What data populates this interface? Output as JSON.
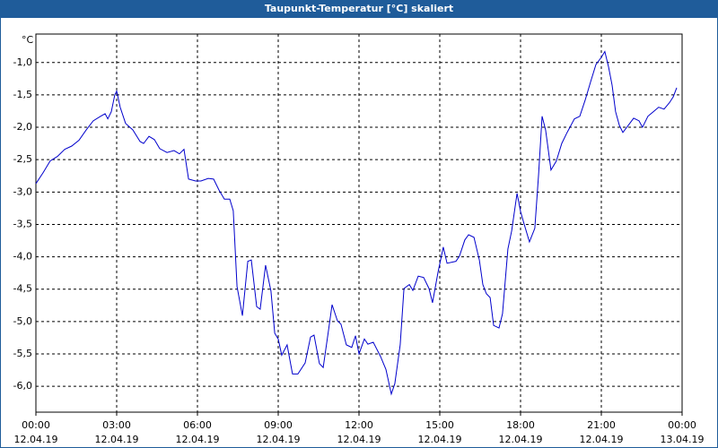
{
  "chart_data": {
    "type": "line",
    "title": "Taupunkt-Temperatur [°C] skaliert",
    "y_label": "°C",
    "xlim": [
      0,
      24
    ],
    "ylim": [
      -6.4,
      -0.56
    ],
    "grid": true,
    "xticks": [
      {
        "value": 0,
        "label": "00:00"
      },
      {
        "value": 3,
        "label": "03:00"
      },
      {
        "value": 6,
        "label": "06:00"
      },
      {
        "value": 9,
        "label": "09:00"
      },
      {
        "value": 12,
        "label": "12:00"
      },
      {
        "value": 15,
        "label": "15:00"
      },
      {
        "value": 18,
        "label": "18:00"
      },
      {
        "value": 21,
        "label": "21:00"
      },
      {
        "value": 24,
        "label": "00:00"
      }
    ],
    "xtick_dates": [
      "12.04.19",
      "12.04.19",
      "12.04.19",
      "12.04.19",
      "12.04.19",
      "12.04.19",
      "12.04.19",
      "12.04.19",
      "13.04.19"
    ],
    "yticks": [
      {
        "value": -1,
        "label": "-1,0"
      },
      {
        "value": -1.5,
        "label": "-1,5"
      },
      {
        "value": -2,
        "label": "-2,0"
      },
      {
        "value": -2.5,
        "label": "-2,5"
      },
      {
        "value": -3,
        "label": "-3,0"
      },
      {
        "value": -3.5,
        "label": "-3,5"
      },
      {
        "value": -4,
        "label": "-4,0"
      },
      {
        "value": -4.5,
        "label": "-4,5"
      },
      {
        "value": -5,
        "label": "-5,0"
      },
      {
        "value": -5.5,
        "label": "-5,5"
      },
      {
        "value": -6,
        "label": "-6,0"
      }
    ],
    "x": [
      0,
      0.27,
      0.53,
      0.8,
      1.07,
      1.33,
      1.6,
      1.87,
      2.13,
      2.4,
      2.57,
      2.67,
      2.8,
      2.93,
      3,
      3.13,
      3.33,
      3.6,
      3.87,
      4,
      4.2,
      4.4,
      4.6,
      4.87,
      5.13,
      5.33,
      5.5,
      5.67,
      5.93,
      6.13,
      6.4,
      6.6,
      6.8,
      7,
      7.2,
      7.33,
      7.47,
      7.67,
      7.87,
      8,
      8.2,
      8.33,
      8.53,
      8.73,
      8.87,
      9,
      9.13,
      9.33,
      9.53,
      9.73,
      10,
      10.2,
      10.33,
      10.53,
      10.67,
      10.87,
      11,
      11.2,
      11.33,
      11.53,
      11.73,
      11.87,
      12,
      12.2,
      12.33,
      12.53,
      12.8,
      13,
      13.2,
      13.33,
      13.53,
      13.67,
      13.87,
      14,
      14.2,
      14.4,
      14.6,
      14.73,
      14.93,
      15.13,
      15.27,
      15.6,
      15.73,
      15.93,
      16.07,
      16.27,
      16.47,
      16.6,
      16.73,
      16.87,
      17,
      17.2,
      17.33,
      17.53,
      17.67,
      17.87,
      18,
      18.13,
      18.33,
      18.53,
      18.67,
      18.8,
      18.93,
      19.13,
      19.33,
      19.53,
      19.73,
      20,
      20.2,
      20.4,
      20.6,
      20.8,
      21,
      21.13,
      21.27,
      21.4,
      21.53,
      21.67,
      21.8,
      22,
      22.2,
      22.4,
      22.53,
      22.73,
      22.93,
      23.13,
      23.33,
      23.53,
      23.67,
      23.8
    ],
    "series": [
      {
        "color": "#0000cc",
        "values": [
          -2.87,
          -2.7,
          -2.52,
          -2.45,
          -2.34,
          -2.29,
          -2.2,
          -2.04,
          -1.9,
          -1.83,
          -1.79,
          -1.87,
          -1.76,
          -1.5,
          -1.44,
          -1.69,
          -1.94,
          -2.04,
          -2.22,
          -2.25,
          -2.14,
          -2.19,
          -2.33,
          -2.39,
          -2.36,
          -2.41,
          -2.34,
          -2.8,
          -2.83,
          -2.83,
          -2.79,
          -2.8,
          -2.97,
          -3.11,
          -3.11,
          -3.29,
          -4.46,
          -4.91,
          -4.07,
          -4.05,
          -4.77,
          -4.81,
          -4.13,
          -4.53,
          -5.18,
          -5.27,
          -5.52,
          -5.36,
          -5.81,
          -5.81,
          -5.64,
          -5.24,
          -5.21,
          -5.65,
          -5.71,
          -5.13,
          -4.74,
          -4.99,
          -5.04,
          -5.36,
          -5.4,
          -5.22,
          -5.5,
          -5.27,
          -5.35,
          -5.32,
          -5.54,
          -5.74,
          -6.12,
          -5.96,
          -5.36,
          -4.49,
          -4.43,
          -4.52,
          -4.3,
          -4.32,
          -4.49,
          -4.71,
          -4.25,
          -3.85,
          -4.1,
          -4.07,
          -3.99,
          -3.74,
          -3.66,
          -3.7,
          -4.05,
          -4.43,
          -4.57,
          -4.63,
          -5.06,
          -5.1,
          -4.88,
          -3.88,
          -3.6,
          -3.02,
          -3.3,
          -3.49,
          -3.77,
          -3.56,
          -2.73,
          -1.83,
          -2.04,
          -2.66,
          -2.52,
          -2.25,
          -2.08,
          -1.87,
          -1.83,
          -1.58,
          -1.3,
          -1.03,
          -0.92,
          -0.83,
          -1.07,
          -1.35,
          -1.76,
          -1.97,
          -2.08,
          -1.97,
          -1.86,
          -1.9,
          -2.0,
          -1.83,
          -1.76,
          -1.69,
          -1.72,
          -1.62,
          -1.53,
          -1.39
        ]
      }
    ]
  }
}
